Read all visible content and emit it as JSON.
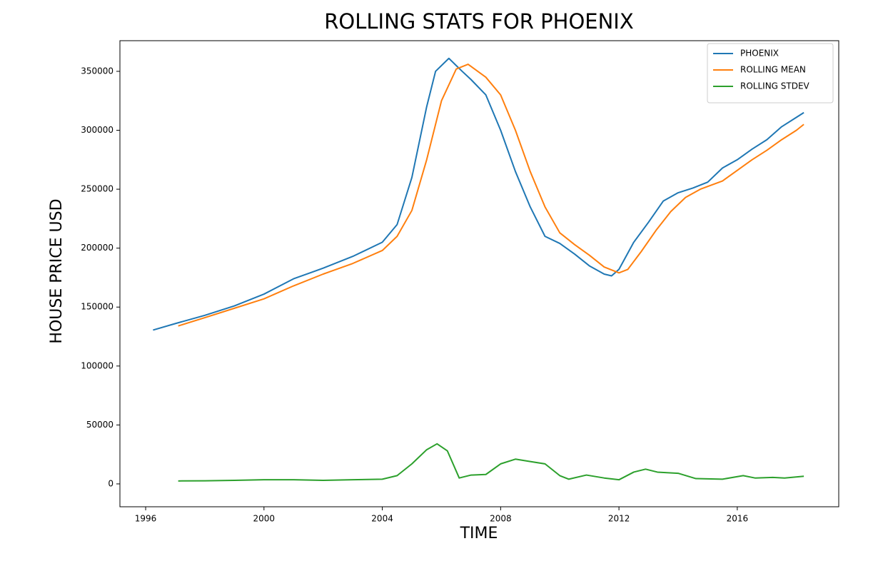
{
  "chart_data": {
    "type": "line",
    "title": "ROLLING STATS FOR PHOENIX",
    "x_label": "TIME",
    "y_label": "HOUSE PRICE USD",
    "xlim": [
      1995.13,
      2019.43
    ],
    "ylim": [
      -19400,
      376000
    ],
    "xticks": [
      1996,
      2000,
      2004,
      2008,
      2012,
      2016
    ],
    "yticks": [
      0,
      50000,
      100000,
      150000,
      200000,
      250000,
      300000,
      350000
    ],
    "legend": "upper right",
    "series": [
      {
        "name": "PHOENIX",
        "color": "#1f77b4",
        "x": [
          1996.25,
          1997,
          1998,
          1999,
          2000,
          2001,
          2002,
          2003,
          2004,
          2004.5,
          2005,
          2005.5,
          2005.8,
          2006.25,
          2006.7,
          2007,
          2007.5,
          2008,
          2008.5,
          2009,
          2009.5,
          2010,
          2010.5,
          2011,
          2011.5,
          2011.75,
          2012,
          2012.5,
          2013,
          2013.5,
          2014,
          2014.5,
          2015,
          2015.5,
          2016,
          2016.5,
          2017,
          2017.5,
          2018,
          2018.25
        ],
        "values": [
          130500,
          136000,
          143000,
          151000,
          161000,
          174000,
          183000,
          193000,
          205000,
          220000,
          260000,
          320000,
          350000,
          361000,
          350000,
          343000,
          330000,
          300000,
          265000,
          235000,
          210000,
          204000,
          195000,
          185000,
          178000,
          176500,
          182000,
          205000,
          222000,
          240000,
          247000,
          251000,
          256000,
          268000,
          275000,
          284000,
          292000,
          303000,
          311000,
          315000
        ]
      },
      {
        "name": "ROLLING MEAN",
        "color": "#ff7f0e",
        "x": [
          1997.1,
          1998,
          1999,
          2000,
          2001,
          2002,
          2003,
          2004,
          2004.5,
          2005,
          2005.5,
          2006,
          2006.5,
          2006.9,
          2007.5,
          2008,
          2008.5,
          2009,
          2009.5,
          2010,
          2010.5,
          2011,
          2011.5,
          2012,
          2012.3,
          2012.75,
          2013.25,
          2013.75,
          2014.25,
          2014.75,
          2015.5,
          2016,
          2016.5,
          2017,
          2017.5,
          2018,
          2018.25
        ],
        "values": [
          134000,
          141000,
          149000,
          157000,
          168000,
          178000,
          187000,
          198000,
          210000,
          232000,
          275000,
          325000,
          352000,
          356000,
          345000,
          330000,
          300000,
          265000,
          235000,
          213000,
          203000,
          194000,
          184000,
          179000,
          182000,
          197000,
          215000,
          231000,
          243000,
          250000,
          257000,
          266000,
          275000,
          283000,
          292000,
          300000,
          305000
        ]
      },
      {
        "name": "ROLLING STDEV",
        "color": "#2ca02c",
        "x": [
          1997.1,
          1998,
          1999,
          2000,
          2001,
          2002,
          2003,
          2004,
          2004.5,
          2005,
          2005.5,
          2005.85,
          2006.2,
          2006.6,
          2007,
          2007.5,
          2008,
          2008.5,
          2009,
          2009.5,
          2010,
          2010.3,
          2010.9,
          2011.5,
          2012,
          2012.5,
          2012.9,
          2013.3,
          2014,
          2014.6,
          2015.5,
          2016.2,
          2016.6,
          2017.2,
          2017.6,
          2018.25
        ],
        "values": [
          2500,
          2600,
          3000,
          3500,
          3500,
          3000,
          3500,
          4000,
          7000,
          17000,
          29000,
          34000,
          28000,
          5000,
          7500,
          8000,
          17000,
          21000,
          19000,
          17000,
          7000,
          4000,
          7500,
          5000,
          3500,
          10000,
          12500,
          10000,
          9000,
          4500,
          4000,
          7000,
          5000,
          5500,
          5000,
          6500
        ]
      }
    ]
  }
}
